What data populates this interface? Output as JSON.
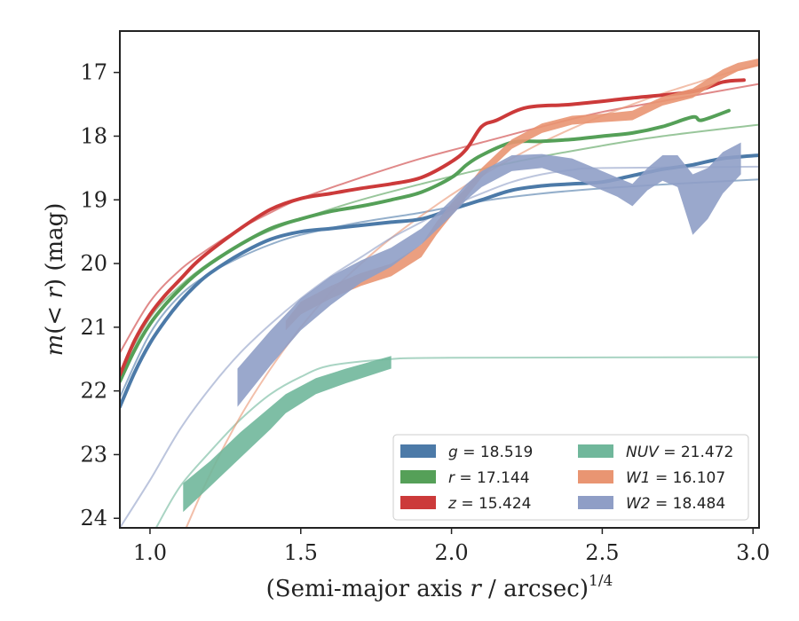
{
  "chart_data": {
    "type": "line",
    "xlabel": "(Semi-major axis r / arcsec)",
    "xlabel_parts": [
      "(Semi-major axis ",
      "r",
      " / arcsec)",
      "1/4"
    ],
    "ylabel_parts": [
      "m",
      "(< ",
      "r",
      ") (mag)"
    ],
    "xlim": [
      0.9,
      3.02
    ],
    "ylim": [
      24.15,
      16.35
    ],
    "y_inverted": true,
    "xticks": [
      1.0,
      1.5,
      2.0,
      2.5,
      3.0
    ],
    "xtick_labels": [
      "1.0",
      "1.5",
      "2.0",
      "2.5",
      "3.0"
    ],
    "yticks": [
      17,
      18,
      19,
      20,
      21,
      22,
      23,
      24
    ],
    "ytick_labels": [
      "17",
      "18",
      "19",
      "20",
      "21",
      "22",
      "23",
      "24"
    ],
    "grid": false,
    "legend_placement": "lower-right",
    "series": [
      {
        "name": "g = 18.519",
        "label_var": "g",
        "label_value": "18.519",
        "color": "#4c7aa8",
        "band": false,
        "data": [
          [
            0.9,
            22.25
          ],
          [
            0.95,
            21.7
          ],
          [
            1.0,
            21.25
          ],
          [
            1.05,
            20.9
          ],
          [
            1.1,
            20.6
          ],
          [
            1.15,
            20.35
          ],
          [
            1.2,
            20.15
          ],
          [
            1.3,
            19.85
          ],
          [
            1.4,
            19.62
          ],
          [
            1.5,
            19.5
          ],
          [
            1.6,
            19.45
          ],
          [
            1.7,
            19.4
          ],
          [
            1.8,
            19.35
          ],
          [
            1.9,
            19.3
          ],
          [
            2.0,
            19.15
          ],
          [
            2.1,
            19.0
          ],
          [
            2.2,
            18.85
          ],
          [
            2.3,
            18.78
          ],
          [
            2.4,
            18.75
          ],
          [
            2.5,
            18.72
          ],
          [
            2.6,
            18.62
          ],
          [
            2.7,
            18.52
          ],
          [
            2.8,
            18.45
          ],
          [
            2.9,
            18.35
          ],
          [
            3.02,
            18.3
          ]
        ],
        "model": [
          [
            0.9,
            22.1
          ],
          [
            1.0,
            21.1
          ],
          [
            1.1,
            20.5
          ],
          [
            1.2,
            20.15
          ],
          [
            1.3,
            19.9
          ],
          [
            1.4,
            19.7
          ],
          [
            1.5,
            19.55
          ],
          [
            1.7,
            19.35
          ],
          [
            1.9,
            19.2
          ],
          [
            2.1,
            19.02
          ],
          [
            2.3,
            18.9
          ],
          [
            2.5,
            18.82
          ],
          [
            2.7,
            18.76
          ],
          [
            3.02,
            18.68
          ]
        ]
      },
      {
        "name": "r = 17.144",
        "label_var": "r",
        "label_value": "17.144",
        "color": "#55a058",
        "band": false,
        "data": [
          [
            0.9,
            21.85
          ],
          [
            0.95,
            21.35
          ],
          [
            1.0,
            20.95
          ],
          [
            1.05,
            20.65
          ],
          [
            1.1,
            20.4
          ],
          [
            1.15,
            20.18
          ],
          [
            1.2,
            20.0
          ],
          [
            1.3,
            19.7
          ],
          [
            1.4,
            19.45
          ],
          [
            1.5,
            19.3
          ],
          [
            1.6,
            19.18
          ],
          [
            1.7,
            19.1
          ],
          [
            1.8,
            19.0
          ],
          [
            1.9,
            18.88
          ],
          [
            2.0,
            18.65
          ],
          [
            2.05,
            18.45
          ],
          [
            2.1,
            18.3
          ],
          [
            2.2,
            18.1
          ],
          [
            2.3,
            18.08
          ],
          [
            2.4,
            18.05
          ],
          [
            2.5,
            18.0
          ],
          [
            2.6,
            17.95
          ],
          [
            2.7,
            17.85
          ],
          [
            2.8,
            17.7
          ],
          [
            2.83,
            17.75
          ],
          [
            2.92,
            17.6
          ]
        ],
        "model": [
          [
            0.9,
            21.7
          ],
          [
            1.0,
            20.85
          ],
          [
            1.1,
            20.35
          ],
          [
            1.2,
            19.98
          ],
          [
            1.3,
            19.7
          ],
          [
            1.4,
            19.48
          ],
          [
            1.5,
            19.3
          ],
          [
            1.7,
            19.0
          ],
          [
            1.9,
            18.75
          ],
          [
            2.1,
            18.52
          ],
          [
            2.3,
            18.32
          ],
          [
            2.5,
            18.15
          ],
          [
            2.7,
            18.0
          ],
          [
            3.02,
            17.82
          ]
        ]
      },
      {
        "name": "z = 15.424",
        "label_var": "z",
        "label_value": "15.424",
        "color": "#cc3a3a",
        "band": false,
        "data": [
          [
            0.9,
            21.75
          ],
          [
            0.95,
            21.2
          ],
          [
            1.0,
            20.8
          ],
          [
            1.05,
            20.5
          ],
          [
            1.1,
            20.25
          ],
          [
            1.15,
            20.0
          ],
          [
            1.2,
            19.8
          ],
          [
            1.3,
            19.45
          ],
          [
            1.4,
            19.15
          ],
          [
            1.5,
            18.98
          ],
          [
            1.6,
            18.9
          ],
          [
            1.7,
            18.82
          ],
          [
            1.8,
            18.75
          ],
          [
            1.9,
            18.65
          ],
          [
            2.0,
            18.4
          ],
          [
            2.05,
            18.2
          ],
          [
            2.1,
            17.85
          ],
          [
            2.15,
            17.75
          ],
          [
            2.25,
            17.55
          ],
          [
            2.4,
            17.5
          ],
          [
            2.6,
            17.4
          ],
          [
            2.8,
            17.3
          ],
          [
            2.9,
            17.15
          ],
          [
            2.97,
            17.12
          ]
        ],
        "model": [
          [
            0.9,
            21.4
          ],
          [
            1.0,
            20.6
          ],
          [
            1.1,
            20.1
          ],
          [
            1.2,
            19.75
          ],
          [
            1.3,
            19.45
          ],
          [
            1.4,
            19.2
          ],
          [
            1.5,
            18.98
          ],
          [
            1.7,
            18.65
          ],
          [
            1.9,
            18.35
          ],
          [
            2.1,
            18.1
          ],
          [
            2.3,
            17.85
          ],
          [
            2.5,
            17.62
          ],
          [
            2.7,
            17.45
          ],
          [
            3.02,
            17.18
          ]
        ]
      },
      {
        "name": "NUV = 21.472",
        "label_var": "NUV",
        "label_value": "21.472",
        "color": "#70b79b",
        "band": true,
        "data": [
          [
            1.11,
            23.45,
            23.9
          ],
          [
            1.2,
            23.1,
            23.5
          ],
          [
            1.3,
            22.65,
            23.05
          ],
          [
            1.4,
            22.25,
            22.6
          ],
          [
            1.45,
            22.05,
            22.35
          ],
          [
            1.55,
            21.8,
            22.05
          ],
          [
            1.65,
            21.65,
            21.88
          ],
          [
            1.8,
            21.45,
            21.65
          ]
        ],
        "model": [
          [
            1.02,
            24.15
          ],
          [
            1.1,
            23.5
          ],
          [
            1.2,
            22.95
          ],
          [
            1.3,
            22.45
          ],
          [
            1.4,
            22.05
          ],
          [
            1.5,
            21.78
          ],
          [
            1.6,
            21.6
          ],
          [
            1.8,
            21.5
          ],
          [
            2.0,
            21.48
          ],
          [
            3.02,
            21.47
          ]
        ]
      },
      {
        "name": "W1 = 16.107",
        "label_var": "W1",
        "label_value": "16.107",
        "color": "#e99572",
        "band": true,
        "data": [
          [
            1.45,
            20.9,
            21.05
          ],
          [
            1.5,
            20.6,
            20.8
          ],
          [
            1.6,
            20.35,
            20.55
          ],
          [
            1.7,
            20.15,
            20.35
          ],
          [
            1.8,
            20.0,
            20.2
          ],
          [
            1.9,
            19.7,
            19.9
          ],
          [
            1.95,
            19.35,
            19.55
          ],
          [
            2.0,
            19.05,
            19.25
          ],
          [
            2.05,
            18.8,
            18.95
          ],
          [
            2.1,
            18.5,
            18.65
          ],
          [
            2.2,
            18.05,
            18.2
          ],
          [
            2.3,
            17.8,
            17.95
          ],
          [
            2.4,
            17.68,
            17.82
          ],
          [
            2.5,
            17.65,
            17.78
          ],
          [
            2.6,
            17.6,
            17.75
          ],
          [
            2.7,
            17.38,
            17.52
          ],
          [
            2.8,
            17.25,
            17.4
          ],
          [
            2.9,
            16.95,
            17.1
          ],
          [
            2.95,
            16.85,
            16.98
          ],
          [
            3.02,
            16.78,
            16.9
          ]
        ],
        "model": [
          [
            1.12,
            24.15
          ],
          [
            1.2,
            23.3
          ],
          [
            1.3,
            22.4
          ],
          [
            1.4,
            21.65
          ],
          [
            1.5,
            21.0
          ],
          [
            1.6,
            20.45
          ],
          [
            1.7,
            20.0
          ],
          [
            1.8,
            19.6
          ],
          [
            1.9,
            19.25
          ],
          [
            2.0,
            18.92
          ],
          [
            2.1,
            18.62
          ],
          [
            2.2,
            18.35
          ],
          [
            2.3,
            18.1
          ],
          [
            2.4,
            17.88
          ],
          [
            2.5,
            17.68
          ],
          [
            2.6,
            17.5
          ],
          [
            2.7,
            17.33
          ],
          [
            2.8,
            17.18
          ],
          [
            2.9,
            17.03
          ],
          [
            3.02,
            16.87
          ]
        ]
      },
      {
        "name": "W2 = 18.484",
        "label_var": "W2",
        "label_value": "18.484",
        "color": "#8f9ec6",
        "band": true,
        "data": [
          [
            1.29,
            21.65,
            22.25
          ],
          [
            1.4,
            21.05,
            21.6
          ],
          [
            1.5,
            20.55,
            21.05
          ],
          [
            1.6,
            20.2,
            20.65
          ],
          [
            1.7,
            19.95,
            20.3
          ],
          [
            1.8,
            19.75,
            20.05
          ],
          [
            1.9,
            19.45,
            19.7
          ],
          [
            2.0,
            19.0,
            19.25
          ],
          [
            2.05,
            18.75,
            19.0
          ],
          [
            2.1,
            18.55,
            18.8
          ],
          [
            2.2,
            18.3,
            18.55
          ],
          [
            2.3,
            18.28,
            18.5
          ],
          [
            2.4,
            18.35,
            18.65
          ],
          [
            2.5,
            18.55,
            18.85
          ],
          [
            2.55,
            18.65,
            18.95
          ],
          [
            2.6,
            18.75,
            19.1
          ],
          [
            2.65,
            18.5,
            18.85
          ],
          [
            2.7,
            18.3,
            18.7
          ],
          [
            2.75,
            18.3,
            18.8
          ],
          [
            2.8,
            18.6,
            19.55
          ],
          [
            2.85,
            18.5,
            19.3
          ],
          [
            2.9,
            18.25,
            18.9
          ],
          [
            2.96,
            18.1,
            18.6
          ]
        ],
        "model": [
          [
            0.9,
            24.15
          ],
          [
            1.0,
            23.4
          ],
          [
            1.1,
            22.6
          ],
          [
            1.2,
            21.95
          ],
          [
            1.3,
            21.4
          ],
          [
            1.4,
            20.95
          ],
          [
            1.5,
            20.55
          ],
          [
            1.6,
            20.2
          ],
          [
            1.7,
            19.9
          ],
          [
            1.8,
            19.6
          ],
          [
            1.9,
            19.35
          ],
          [
            2.0,
            19.1
          ],
          [
            2.1,
            18.9
          ],
          [
            2.2,
            18.72
          ],
          [
            2.3,
            18.6
          ],
          [
            2.4,
            18.53
          ],
          [
            2.5,
            18.5
          ],
          [
            3.02,
            18.48
          ]
        ]
      }
    ]
  }
}
